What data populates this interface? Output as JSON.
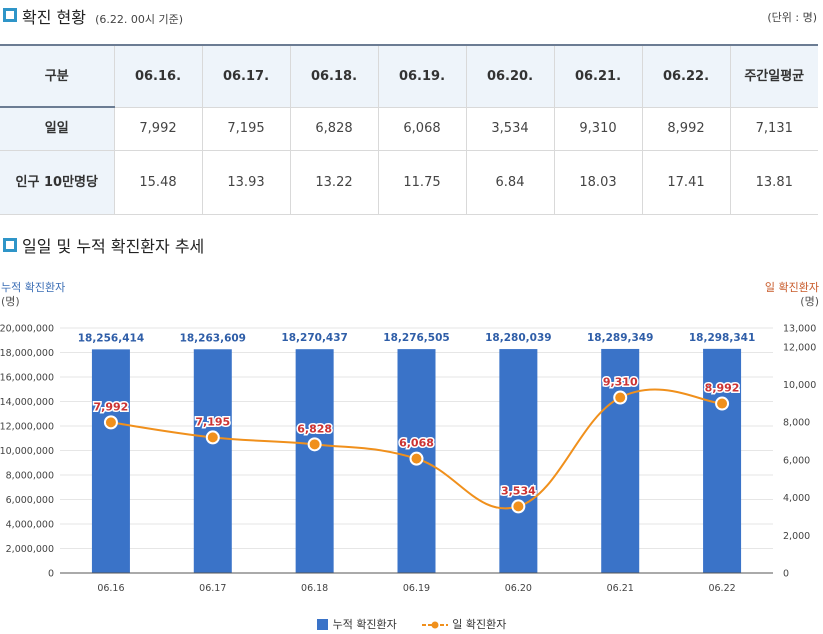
{
  "section1": {
    "title": "확진 현황",
    "subtitle": "(6.22. 00시 기준)",
    "unit": "(단위 : 명)"
  },
  "table": {
    "header_label": "구분",
    "columns": [
      "06.16.",
      "06.17.",
      "06.18.",
      "06.19.",
      "06.20.",
      "06.21.",
      "06.22.",
      "주간일평균"
    ],
    "rows": [
      {
        "label": "일일",
        "values": [
          "7,992",
          "7,195",
          "6,828",
          "6,068",
          "3,534",
          "9,310",
          "8,992",
          "7,131"
        ]
      },
      {
        "label": "인구 10만명당",
        "values": [
          "15.48",
          "13.93",
          "13.22",
          "11.75",
          "6.84",
          "18.03",
          "17.41",
          "13.81"
        ]
      }
    ]
  },
  "section2": {
    "title": "일일 및 누적 확진환자 추세"
  },
  "chart_labels": {
    "left_axis_title": "누적 확진환자",
    "left_axis_unit": "(명)",
    "right_axis_title": "일 확진환자",
    "right_axis_unit": "(명)"
  },
  "colors": {
    "bar": "#3a73c8",
    "line": "#f0901c",
    "left_title": "#3a6db5",
    "right_title": "#c85a2a",
    "bar_label": "#2f5ea8",
    "line_label": "#cc3333"
  },
  "chart_data": {
    "type": "bar",
    "categories": [
      "06.16",
      "06.17",
      "06.18",
      "06.19",
      "06.20",
      "06.21",
      "06.22"
    ],
    "series": [
      {
        "name": "누적 확진환자",
        "type": "bar",
        "axis": "left",
        "values": [
          18256414,
          18263609,
          18270437,
          18276505,
          18280039,
          18289349,
          18298341
        ],
        "labels": [
          "18,256,414",
          "18,263,609",
          "18,270,437",
          "18,276,505",
          "18,280,039",
          "18,289,349",
          "18,298,341"
        ]
      },
      {
        "name": "일 확진환자",
        "type": "line",
        "axis": "right",
        "values": [
          7992,
          7195,
          6828,
          6068,
          3534,
          9310,
          8992
        ],
        "labels": [
          "7,992",
          "7,195",
          "6,828",
          "6,068",
          "3,534",
          "9,310",
          "8,992"
        ]
      }
    ],
    "left_axis": {
      "min": 0,
      "max": 20000000,
      "ticks": [
        0,
        2000000,
        4000000,
        6000000,
        8000000,
        10000000,
        12000000,
        14000000,
        16000000,
        18000000,
        20000000
      ],
      "tick_labels": [
        "0",
        "2,000,000",
        "4,000,000",
        "6,000,000",
        "8,000,000",
        "10,000,000",
        "12,000,000",
        "14,000,000",
        "16,000,000",
        "18,000,000",
        "20,000,000"
      ]
    },
    "right_axis": {
      "min": 0,
      "max": 13000,
      "ticks": [
        0,
        2000,
        4000,
        6000,
        8000,
        10000,
        12000,
        13000
      ],
      "tick_labels": [
        "0",
        "2,000",
        "4,000",
        "6,000",
        "8,000",
        "10,000",
        "12,000",
        "13,000"
      ]
    },
    "grid": true,
    "legend_position": "bottom"
  }
}
